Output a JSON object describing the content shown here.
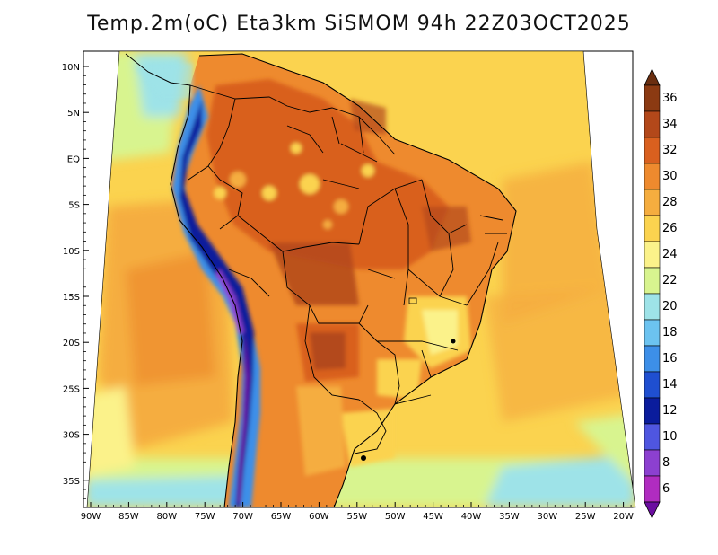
{
  "title": "Temp.2m(oC) Eta3km SiSMOM 94h 22Z03OCT2025",
  "lat_labels": [
    "10N",
    "5N",
    "EQ",
    "5S",
    "10S",
    "15S",
    "20S",
    "25S",
    "30S",
    "35S"
  ],
  "lon_labels": [
    "90W",
    "85W",
    "80W",
    "75W",
    "70W",
    "65W",
    "60W",
    "55W",
    "50W",
    "45W",
    "40W",
    "35W",
    "30W",
    "25W",
    "20W"
  ],
  "colorbar": {
    "labels": [
      "36",
      "34",
      "32",
      "30",
      "28",
      "26",
      "24",
      "22",
      "20",
      "18",
      "16",
      "14",
      "12",
      "10",
      "8",
      "6"
    ],
    "colors": [
      "#6a2e10",
      "#8b3a12",
      "#b3481a",
      "#d9601f",
      "#ee8a2e",
      "#f5ad3f",
      "#fbd34f",
      "#fbf28a",
      "#d8f48f",
      "#9ee3e8",
      "#6cc3f0",
      "#3d8fe8",
      "#1f4fd0",
      "#0a1c9c",
      "#4f56e0",
      "#8c40d0",
      "#b02cc0",
      "#6b0da0"
    ]
  }
}
